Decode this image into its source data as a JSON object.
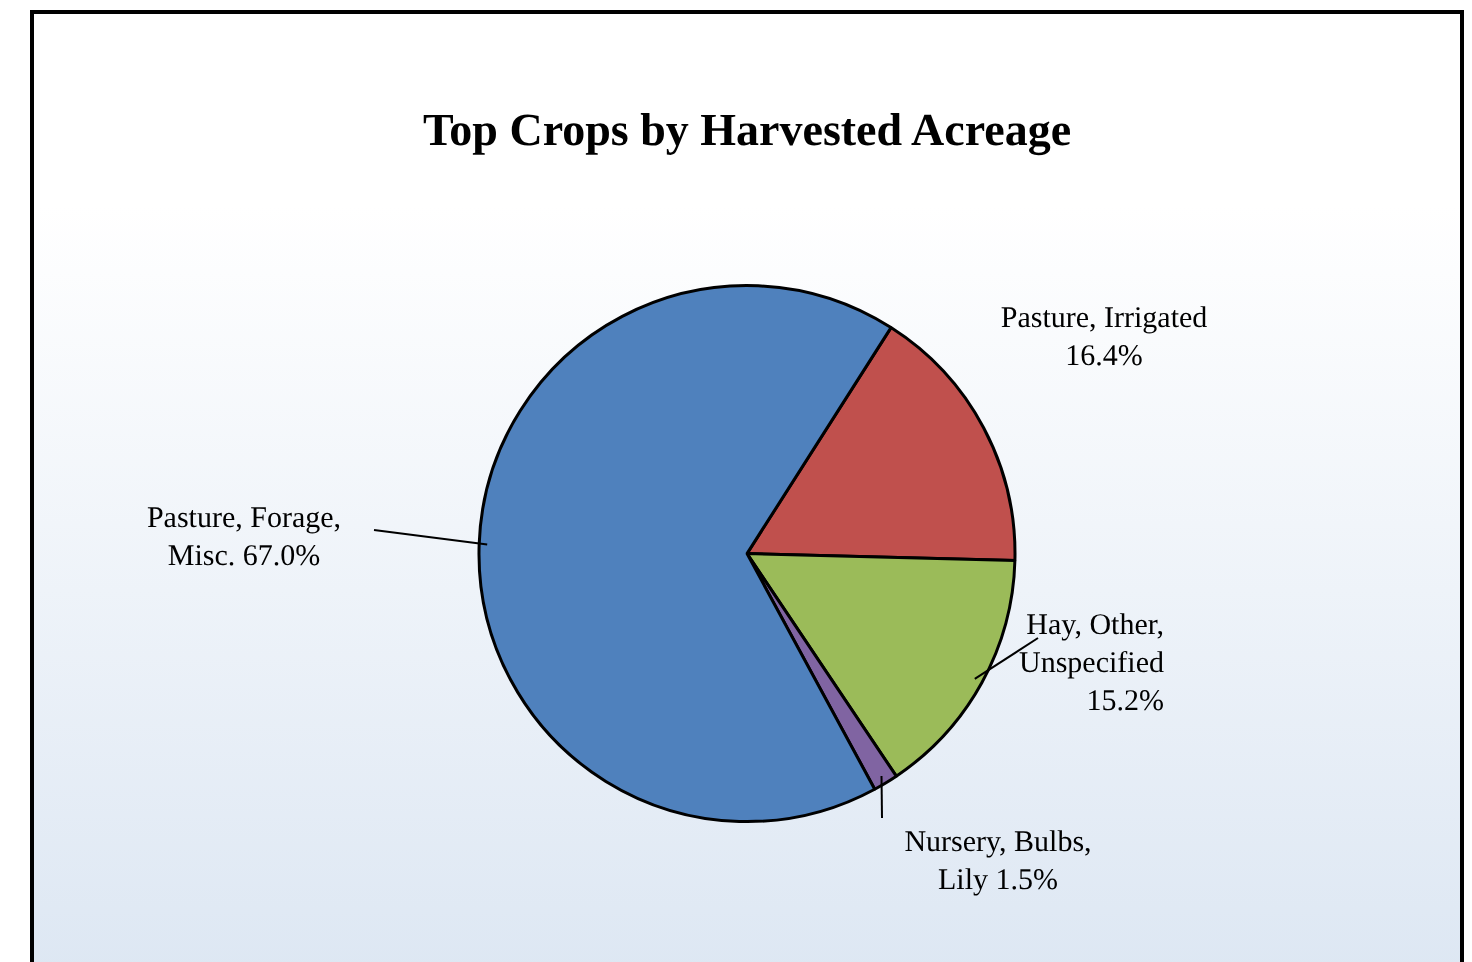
{
  "chart_data": {
    "type": "pie",
    "title": "Top Crops by Harvested Acreage",
    "categories": [
      "Pasture, Irrigated",
      "Hay, Other, Unspecified",
      "Nursery, Bulbs, Lily",
      "Pasture, Forage, Misc."
    ],
    "values": [
      16.4,
      15.2,
      1.5,
      67.0
    ],
    "value_labels": [
      "16.4%",
      "15.2%",
      "1.5%",
      "67.0%"
    ],
    "colors": [
      "#c0504d",
      "#9bbb59",
      "#8064a2",
      "#4f81bd"
    ],
    "legend": false
  }
}
